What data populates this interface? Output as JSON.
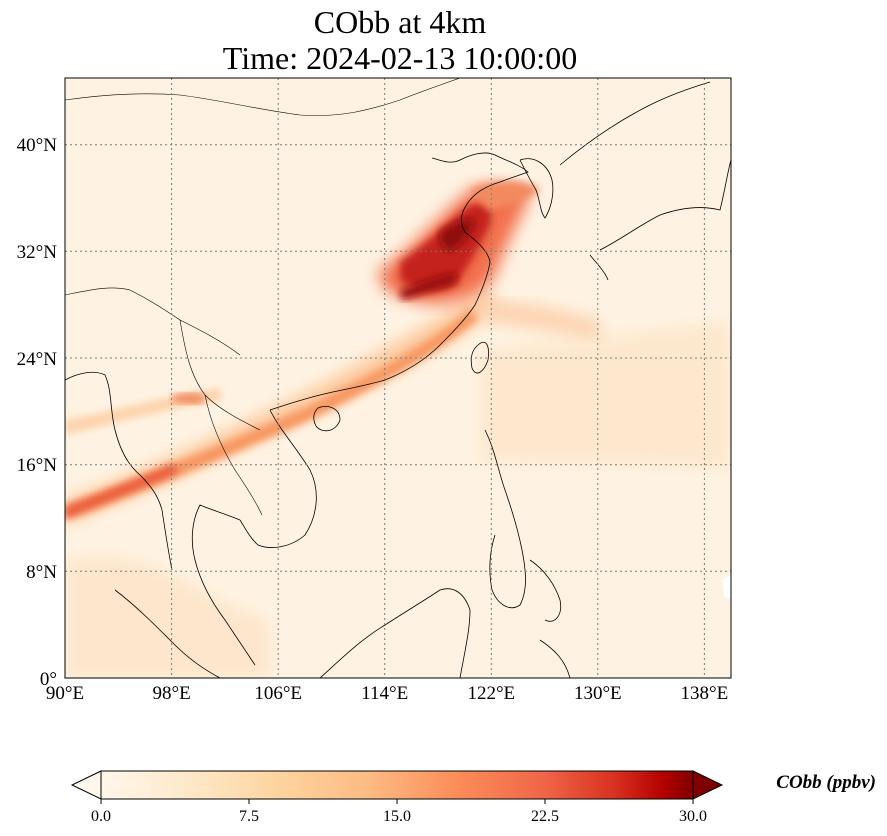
{
  "title": {
    "line1": "CObb at 4km",
    "line2": "Time: 2024-02-13 10:00:00"
  },
  "map": {
    "lon_range": [
      90,
      140
    ],
    "lat_range": [
      0,
      45
    ],
    "lon_ticks": [
      "90°E",
      "98°E",
      "106°E",
      "114°E",
      "122°E",
      "130°E",
      "138°E"
    ],
    "lat_ticks": [
      "0°",
      "8°N",
      "16°N",
      "24°N",
      "32°N",
      "40°N"
    ],
    "gridlines": "dotted",
    "colormap": "OrRd",
    "colormap_low": "#fff7ec",
    "colormap_high": "#7f0000",
    "coastline_color": "#000000"
  },
  "colorbar": {
    "label": "CObb (ppbv)",
    "range": [
      0,
      30
    ],
    "ticks": [
      "0.0",
      "7.5",
      "15.0",
      "22.5",
      "30.0"
    ],
    "extend": "both"
  }
}
